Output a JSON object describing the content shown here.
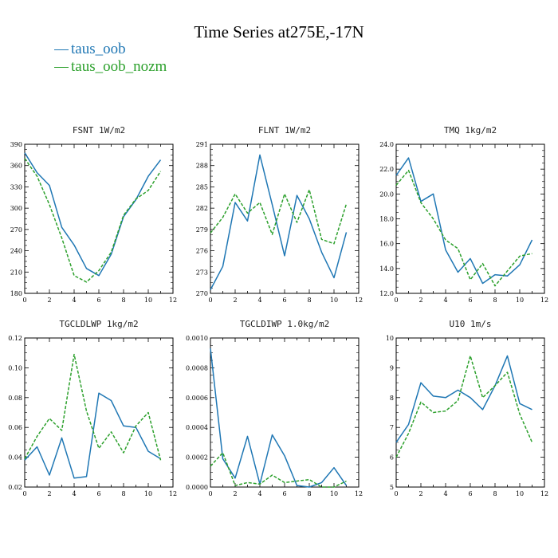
{
  "title": "Time Series at275E,-17N",
  "legend": [
    {
      "name": "taus_oob",
      "color": "#1f77b4"
    },
    {
      "name": "taus_oob_nozm",
      "color": "#2ca02c"
    }
  ],
  "chart_data": [
    {
      "type": "line",
      "title": "FSNT  1W/m2",
      "x": [
        0,
        1,
        2,
        3,
        4,
        5,
        6,
        7,
        8,
        9,
        10,
        11
      ],
      "xlim": [
        0,
        12
      ],
      "xticks": [
        "0",
        "2",
        "4",
        "6",
        "8",
        "10",
        "12"
      ],
      "ylim": [
        180,
        390
      ],
      "yticks": [
        "180",
        "210",
        "240",
        "270",
        "300",
        "330",
        "360",
        "390"
      ],
      "series": [
        {
          "name": "taus_oob",
          "values": [
            378,
            350,
            332,
            273,
            248,
            215,
            205,
            235,
            288,
            312,
            345,
            368
          ]
        },
        {
          "name": "taus_oob_nozm",
          "values": [
            370,
            345,
            305,
            258,
            205,
            196,
            212,
            238,
            290,
            313,
            325,
            352
          ]
        }
      ]
    },
    {
      "type": "line",
      "title": "FLNT  1W/m2",
      "x": [
        0,
        1,
        2,
        3,
        4,
        5,
        6,
        7,
        8,
        9,
        10,
        11
      ],
      "xlim": [
        0,
        12
      ],
      "xticks": [
        "0",
        "2",
        "4",
        "6",
        "8",
        "10",
        "12"
      ],
      "ylim": [
        270,
        291
      ],
      "yticks": [
        "270",
        "273",
        "276",
        "279",
        "282",
        "285",
        "288",
        "291"
      ],
      "series": [
        {
          "name": "taus_oob",
          "values": [
            270.5,
            273.8,
            282.8,
            280.2,
            289.5,
            282.5,
            275.3,
            283.8,
            280.5,
            275.8,
            272.2,
            278.6
          ]
        },
        {
          "name": "taus_oob_nozm",
          "values": [
            278.5,
            280.7,
            284.0,
            281.3,
            282.8,
            278.3,
            284.0,
            280.0,
            284.6,
            277.6,
            277.0,
            282.6
          ]
        }
      ]
    },
    {
      "type": "line",
      "title": "TMQ  1kg/m2",
      "x": [
        0,
        1,
        2,
        3,
        4,
        5,
        6,
        7,
        8,
        9,
        10,
        11
      ],
      "xlim": [
        0,
        12
      ],
      "xticks": [
        "0",
        "2",
        "4",
        "6",
        "8",
        "10",
        "12"
      ],
      "ylim": [
        12.0,
        24.0
      ],
      "yticks": [
        "12.0",
        "14.0",
        "16.0",
        "18.0",
        "20.0",
        "22.0",
        "24.0"
      ],
      "series": [
        {
          "name": "taus_oob",
          "values": [
            21.5,
            22.9,
            19.4,
            20.0,
            15.5,
            13.7,
            14.8,
            12.8,
            13.5,
            13.4,
            14.3,
            16.3
          ]
        },
        {
          "name": "taus_oob_nozm",
          "values": [
            20.7,
            21.9,
            19.3,
            18.0,
            16.3,
            15.6,
            13.1,
            14.4,
            12.6,
            13.8,
            15.0,
            15.2
          ]
        }
      ]
    },
    {
      "type": "line",
      "title": "TGCLDLWP  1kg/m2",
      "x": [
        0,
        1,
        2,
        3,
        4,
        5,
        6,
        7,
        8,
        9,
        10,
        11
      ],
      "xlim": [
        0,
        12
      ],
      "xticks": [
        "0",
        "2",
        "4",
        "6",
        "8",
        "10",
        "12"
      ],
      "ylim": [
        0.02,
        0.12
      ],
      "yticks": [
        "0.02",
        "0.04",
        "0.06",
        "0.08",
        "0.10",
        "0.12"
      ],
      "series": [
        {
          "name": "taus_oob",
          "values": [
            0.038,
            0.047,
            0.028,
            0.053,
            0.026,
            0.027,
            0.083,
            0.078,
            0.061,
            0.06,
            0.044,
            0.039
          ]
        },
        {
          "name": "taus_oob_nozm",
          "values": [
            0.039,
            0.054,
            0.066,
            0.058,
            0.109,
            0.071,
            0.046,
            0.057,
            0.043,
            0.061,
            0.07,
            0.038
          ]
        }
      ]
    },
    {
      "type": "line",
      "title": "TGCLDIWP  1.0kg/m2",
      "x": [
        0,
        1,
        2,
        3,
        4,
        5,
        6,
        7,
        8,
        9,
        10,
        11
      ],
      "xlim": [
        0,
        12
      ],
      "xticks": [
        "0",
        "2",
        "4",
        "6",
        "8",
        "10",
        "12"
      ],
      "ylim": [
        0.0,
        0.001
      ],
      "yticks": [
        "0.0000",
        "0.0002",
        "0.0004",
        "0.0006",
        "0.0008",
        "0.0010"
      ],
      "series": [
        {
          "name": "taus_oob",
          "values": [
            0.00093,
            0.00019,
            6e-05,
            0.00034,
            2e-05,
            0.00035,
            0.00021,
            1e-05,
            0.0,
            3e-05,
            0.00013,
            1e-05
          ]
        },
        {
          "name": "taus_oob_nozm",
          "values": [
            0.00014,
            0.00023,
            1e-05,
            3e-05,
            2e-05,
            8e-05,
            3e-05,
            4e-05,
            5e-05,
            0.0,
            0.0,
            4e-05
          ]
        }
      ]
    },
    {
      "type": "line",
      "title": "U10  1m/s",
      "x": [
        0,
        1,
        2,
        3,
        4,
        5,
        6,
        7,
        8,
        9,
        10,
        11
      ],
      "xlim": [
        0,
        12
      ],
      "xticks": [
        "0",
        "2",
        "4",
        "6",
        "8",
        "10",
        "12"
      ],
      "ylim": [
        5,
        10
      ],
      "yticks": [
        "5",
        "6",
        "7",
        "8",
        "9",
        "10"
      ],
      "series": [
        {
          "name": "taus_oob",
          "values": [
            6.5,
            7.1,
            8.5,
            8.05,
            8.0,
            8.25,
            8.0,
            7.6,
            8.4,
            9.4,
            7.8,
            7.6
          ]
        },
        {
          "name": "taus_oob_nozm",
          "values": [
            6.0,
            6.8,
            7.85,
            7.5,
            7.55,
            7.9,
            9.4,
            8.0,
            8.4,
            8.85,
            7.45,
            6.5
          ]
        }
      ]
    }
  ]
}
